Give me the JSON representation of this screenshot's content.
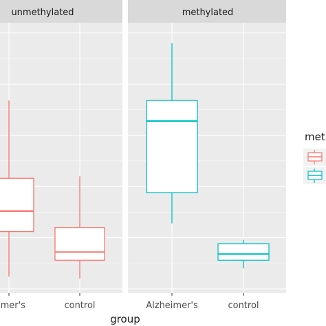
{
  "chart_data": {
    "type": "boxplot",
    "xlabel": "group",
    "ylabel": "",
    "categories": [
      "Alzheimer's",
      "control"
    ],
    "facets": [
      {
        "label": "unmethylated",
        "tick_labels": [
          "eimer's",
          "control"
        ],
        "boxes": [
          {
            "category": "Alzheimer's",
            "min": 0.06,
            "q1": 0.28,
            "median": 0.38,
            "q3": 0.54,
            "max": 0.92
          },
          {
            "category": "control",
            "min": 0.05,
            "q1": 0.14,
            "median": 0.18,
            "q3": 0.3,
            "max": 0.55
          }
        ]
      },
      {
        "label": "methylated",
        "tick_labels": [
          "Alzheimer's",
          "control"
        ],
        "boxes": [
          {
            "category": "Alzheimer's",
            "min": 0.32,
            "q1": 0.47,
            "median": 0.82,
            "q3": 0.92,
            "max": 1.2
          },
          {
            "category": "control",
            "min": 0.1,
            "q1": 0.14,
            "median": 0.17,
            "q3": 0.22,
            "max": 0.24
          }
        ]
      }
    ],
    "ylim": [
      0.0,
      1.3
    ],
    "grid": true,
    "legend": {
      "title": "met",
      "position": "right",
      "entries": [
        {
          "color": "#F8766D"
        },
        {
          "color": "#00BFC4"
        }
      ]
    },
    "colors": {
      "unmethylated": "#F8766D",
      "methylated": "#00BFC4",
      "panel_bg": "#EBEBEB",
      "strip_bg": "#D9D9D9",
      "grid": "#FFFFFF"
    }
  }
}
